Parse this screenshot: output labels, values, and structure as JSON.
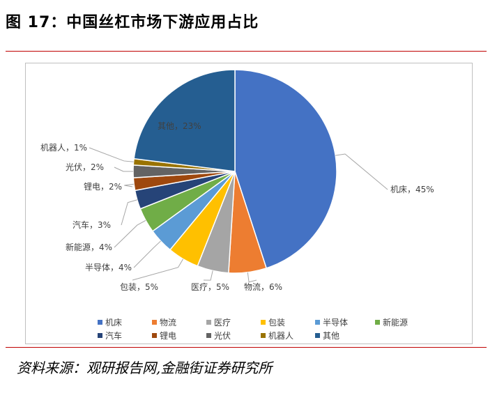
{
  "header": {
    "title": "图 17：中国丝杠市场下游应用占比"
  },
  "footer": {
    "source": "资料来源：观研报告网,金融街证券研究所"
  },
  "chart_data": {
    "type": "pie",
    "slices": [
      {
        "name": "机床",
        "value": 45,
        "label": "机床，45%",
        "color": "#4472C4"
      },
      {
        "name": "物流",
        "value": 6,
        "label": "物流，6%",
        "color": "#ED7D31"
      },
      {
        "name": "医疗",
        "value": 5,
        "label": "医疗，5%",
        "color": "#A5A5A5"
      },
      {
        "name": "包装",
        "value": 5,
        "label": "包装，5%",
        "color": "#FFC000"
      },
      {
        "name": "半导体",
        "value": 4,
        "label": "半导体，4%",
        "color": "#5B9BD5"
      },
      {
        "name": "新能源",
        "value": 4,
        "label": "新能源，4%",
        "color": "#70AD47"
      },
      {
        "name": "汽车",
        "value": 3,
        "label": "汽车，3%",
        "color": "#264478"
      },
      {
        "name": "锂电",
        "value": 2,
        "label": "锂电，2%",
        "color": "#9E480E"
      },
      {
        "name": "光伏",
        "value": 2,
        "label": "光伏，2%",
        "color": "#636363"
      },
      {
        "name": "机器人",
        "value": 1,
        "label": "机器人，1%",
        "color": "#997300"
      },
      {
        "name": "其他",
        "value": 23,
        "label": "其他，23%",
        "color": "#255E91"
      }
    ],
    "legend_position": "bottom"
  }
}
